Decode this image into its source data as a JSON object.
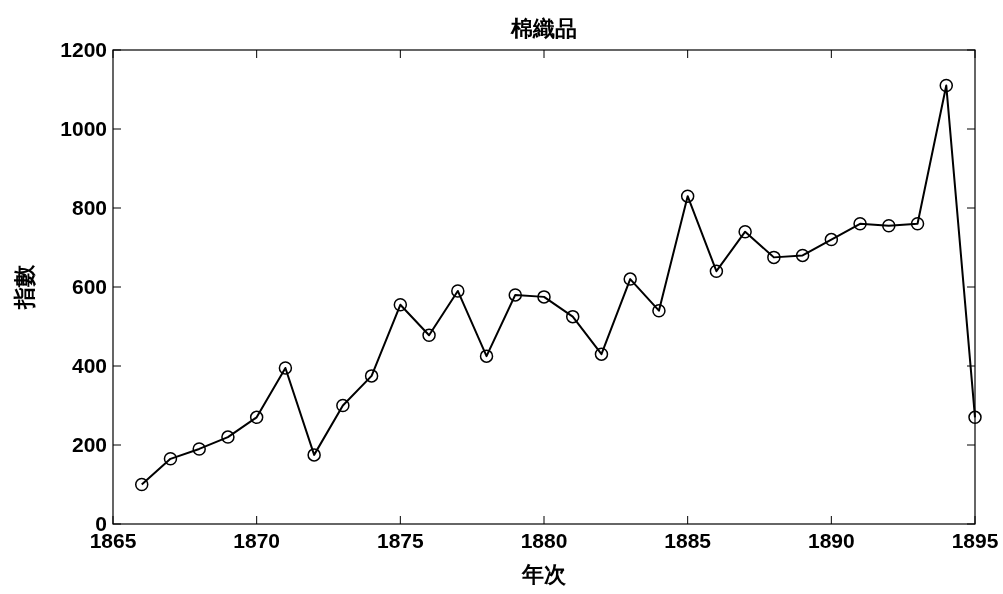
{
  "chart_data": {
    "type": "line",
    "title": "棉織品",
    "xlabel": "年次",
    "ylabel": "指數",
    "x": [
      1866,
      1867,
      1868,
      1869,
      1870,
      1871,
      1872,
      1873,
      1874,
      1875,
      1876,
      1877,
      1878,
      1879,
      1880,
      1881,
      1882,
      1883,
      1884,
      1885,
      1886,
      1887,
      1888,
      1889,
      1890,
      1891,
      1892,
      1893,
      1894,
      1895
    ],
    "series": [
      {
        "color": "#000000",
        "values": [
          100,
          165,
          190,
          220,
          270,
          395,
          175,
          300,
          375,
          555,
          478,
          590,
          425,
          580,
          575,
          525,
          430,
          620,
          540,
          830,
          640,
          740,
          675,
          680,
          720,
          760,
          755,
          760,
          1110,
          270
        ]
      }
    ],
    "xlim": [
      1865,
      1895
    ],
    "ylim": [
      0,
      1200
    ],
    "xticks": [
      1865,
      1870,
      1875,
      1880,
      1885,
      1890,
      1895
    ],
    "yticks": [
      0,
      200,
      400,
      600,
      800,
      1000,
      1200
    ],
    "marker": "circle",
    "line_style": "solid"
  }
}
